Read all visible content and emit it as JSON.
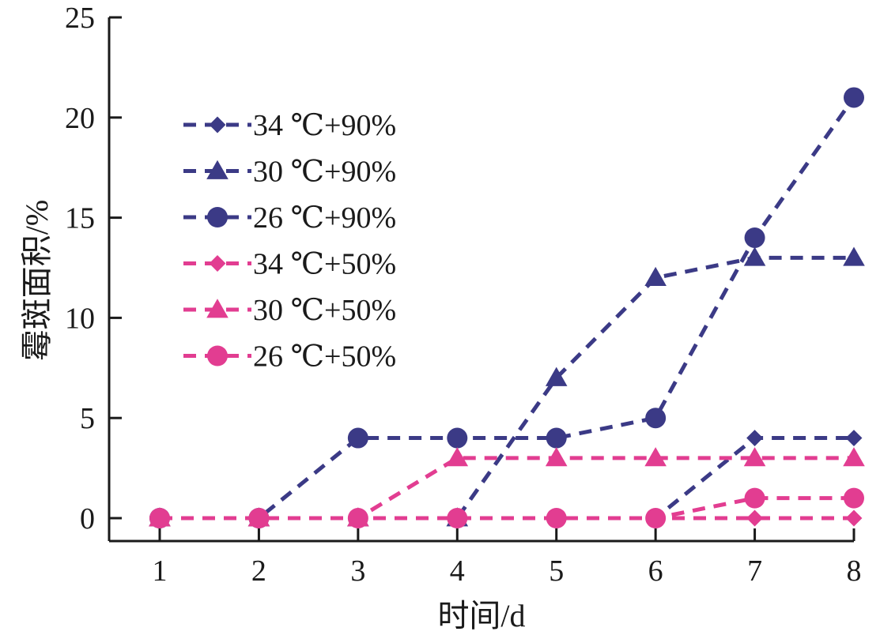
{
  "chart_data": {
    "type": "line",
    "title": "",
    "xlabel": "时间/d",
    "ylabel": "霉斑面积/%",
    "x": [
      1,
      2,
      3,
      4,
      5,
      6,
      7,
      8
    ],
    "x_ticks": [
      "1",
      "2",
      "3",
      "4",
      "5",
      "6",
      "7",
      "8"
    ],
    "y_ticks": [
      "0",
      "5",
      "10",
      "15",
      "20",
      "25"
    ],
    "xlim": [
      1,
      8
    ],
    "ylim": [
      0,
      25
    ],
    "grid": false,
    "legend_position": "top-left",
    "line_style": "dashed",
    "series": [
      {
        "name": "34 ℃+90%",
        "marker": "diamond",
        "color": "#3b3a86",
        "values": [
          0,
          0,
          0,
          0,
          0,
          0,
          4,
          4
        ]
      },
      {
        "name": "30 ℃+90%",
        "marker": "triangle",
        "color": "#3b3a86",
        "values": [
          0,
          0,
          0,
          0,
          7,
          12,
          13,
          13
        ]
      },
      {
        "name": "26 ℃+90%",
        "marker": "circle",
        "color": "#3b3a86",
        "values": [
          0,
          0,
          4,
          4,
          4,
          5,
          14,
          21
        ]
      },
      {
        "name": "34 ℃+50%",
        "marker": "diamond",
        "color": "#e23d91",
        "values": [
          0,
          0,
          0,
          0,
          0,
          0,
          0,
          0
        ]
      },
      {
        "name": "30 ℃+50%",
        "marker": "triangle",
        "color": "#e23d91",
        "values": [
          0,
          0,
          0,
          3,
          3,
          3,
          3,
          3
        ]
      },
      {
        "name": "26 ℃+50%",
        "marker": "circle",
        "color": "#e23d91",
        "values": [
          0,
          0,
          0,
          0,
          0,
          0,
          1,
          1
        ]
      }
    ]
  }
}
